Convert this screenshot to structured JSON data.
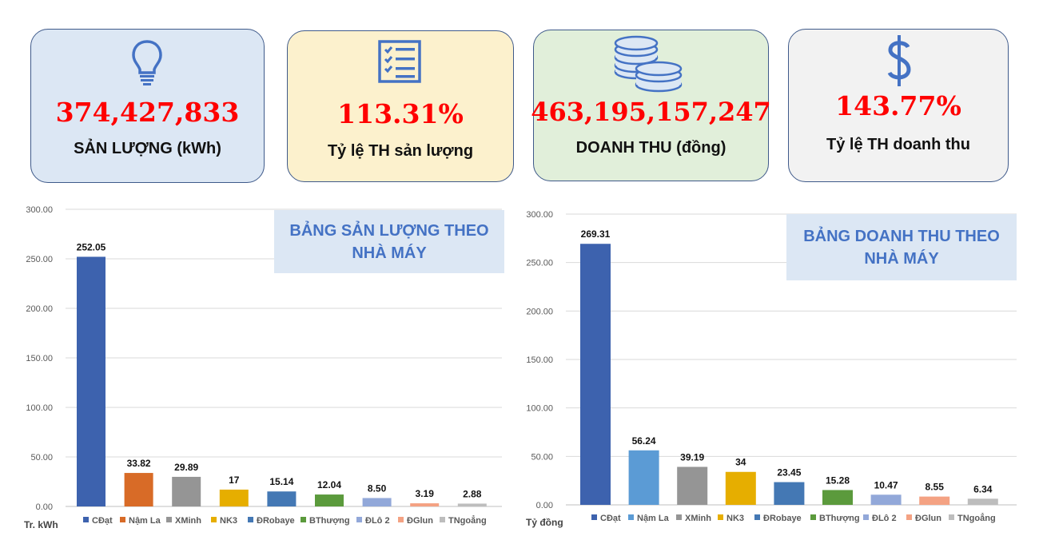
{
  "kpis": [
    {
      "value": "374,427,833",
      "label": "SẢN LƯỢNG (kWh)",
      "icon": "lightbulb-icon"
    },
    {
      "value": "113.31%",
      "label": "Tỷ lệ TH sản lượng",
      "icon": "checklist-icon"
    },
    {
      "value": "463,195,157,247",
      "label": "DOANH THU (đồng)",
      "icon": "coins-icon"
    },
    {
      "value": "143.77%",
      "label": "Tỷ lệ TH doanh thu",
      "icon": "dollar-icon"
    }
  ],
  "colors": {
    "kpi_value": "#ff0000",
    "card_blue": "#dce7f4",
    "card_yellow": "#fcf1cd",
    "card_green": "#e1efda",
    "card_gray": "#f2f2f2",
    "icon_blue": "#4472c4",
    "chart_title": "#4472c4"
  },
  "chart_data": [
    {
      "type": "bar",
      "title": "BẢNG SẢN LƯỢNG THEO NHÀ MÁY",
      "unit": "Tr. kWh",
      "ylim": [
        0,
        300
      ],
      "yticks": [
        "0.00",
        "50.00",
        "100.00",
        "150.00",
        "200.00",
        "250.00",
        "300.00"
      ],
      "grid": true,
      "legend_position": "bottom",
      "categories": [
        "CĐạt",
        "Nậm La",
        "XMinh",
        "NK3",
        "ĐRobaye",
        "BThượng",
        "ĐLô 2",
        "ĐGlun",
        "TNgoẳng"
      ],
      "values": [
        252.05,
        33.82,
        29.89,
        17,
        15.14,
        12.04,
        8.5,
        3.19,
        2.88
      ],
      "labels": [
        "252.05",
        "33.82",
        "29.89",
        "17",
        "15.14",
        "12.04",
        "8.50",
        "3.19",
        "2.88"
      ],
      "colors": [
        "#3d62ae",
        "#d86b27",
        "#959595",
        "#e6ae00",
        "#4478b4",
        "#5b9a3c",
        "#92a8d9",
        "#f4a283",
        "#bdbdbd"
      ]
    },
    {
      "type": "bar",
      "title": "BẢNG DOANH THU THEO NHÀ MÁY",
      "unit": "Tỷ đồng",
      "ylim": [
        0,
        300
      ],
      "yticks": [
        "0.00",
        "50.00",
        "100.00",
        "150.00",
        "200.00",
        "250.00",
        "300.00"
      ],
      "grid": true,
      "legend_position": "bottom",
      "categories": [
        "CĐạt",
        "Nậm La",
        "XMinh",
        "NK3",
        "ĐRobaye",
        "BThượng",
        "ĐLô 2",
        "ĐGlun",
        "TNgoẳng"
      ],
      "values": [
        269.31,
        56.24,
        39.19,
        34,
        23.45,
        15.28,
        10.47,
        8.55,
        6.34
      ],
      "labels": [
        "269.31",
        "56.24",
        "39.19",
        "34",
        "23.45",
        "15.28",
        "10.47",
        "8.55",
        "6.34"
      ],
      "colors": [
        "#3d62ae",
        "#5b9bd5",
        "#959595",
        "#e6ae00",
        "#4478b4",
        "#5b9a3c",
        "#92a8d9",
        "#f4a283",
        "#bdbdbd"
      ]
    }
  ]
}
